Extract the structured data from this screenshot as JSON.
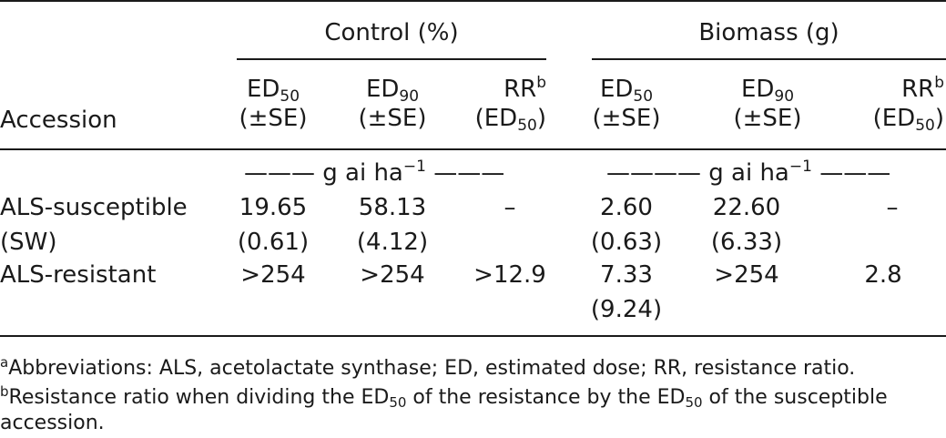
{
  "table": {
    "group_control": "Control (%)",
    "group_biomass": "Biomass (g)",
    "col_accession": "Accession",
    "ed": "ED",
    "rr": "RR",
    "sub50": "50",
    "sub90": "90",
    "sup_b": "b",
    "se": "(±SE)",
    "rr_paren_open": "(ED",
    "rr_paren_close": ")",
    "unit_left": "——— g ai ha",
    "unit_right": "———",
    "unit_left_b": "———— g ai ha",
    "unit_right_b": "———",
    "unit_sup": "−1",
    "rows": [
      {
        "accession_line1": "ALS-susceptible",
        "accession_line2": "(SW)",
        "c_ed50": "19.65",
        "c_ed50_se": "(0.61)",
        "c_ed90": "58.13",
        "c_ed90_se": "(4.12)",
        "c_rr": "–",
        "b_ed50": "2.60",
        "b_ed50_se": "(0.63)",
        "b_ed90": "22.60",
        "b_ed90_se": "(6.33)",
        "b_rr": "–"
      },
      {
        "accession_line1": "ALS-resistant",
        "c_ed50": ">254",
        "c_ed90": ">254",
        "c_rr": ">12.9",
        "b_ed50": "7.33",
        "b_ed50_se": "(9.24)",
        "b_ed90": ">254",
        "b_rr": "2.8"
      }
    ]
  },
  "footnotes": {
    "a_marker": "a",
    "a_text": "Abbreviations: ALS, acetolactate synthase; ED, estimated dose; RR, resistance ratio.",
    "b_marker": "b",
    "b_text_1": "Resistance ratio when dividing the ED",
    "b_sub_1": "50",
    "b_text_2": " of the resistance by the ED",
    "b_sub_2": "50",
    "b_text_3": " of the susceptible",
    "b_text_4": "accession."
  }
}
